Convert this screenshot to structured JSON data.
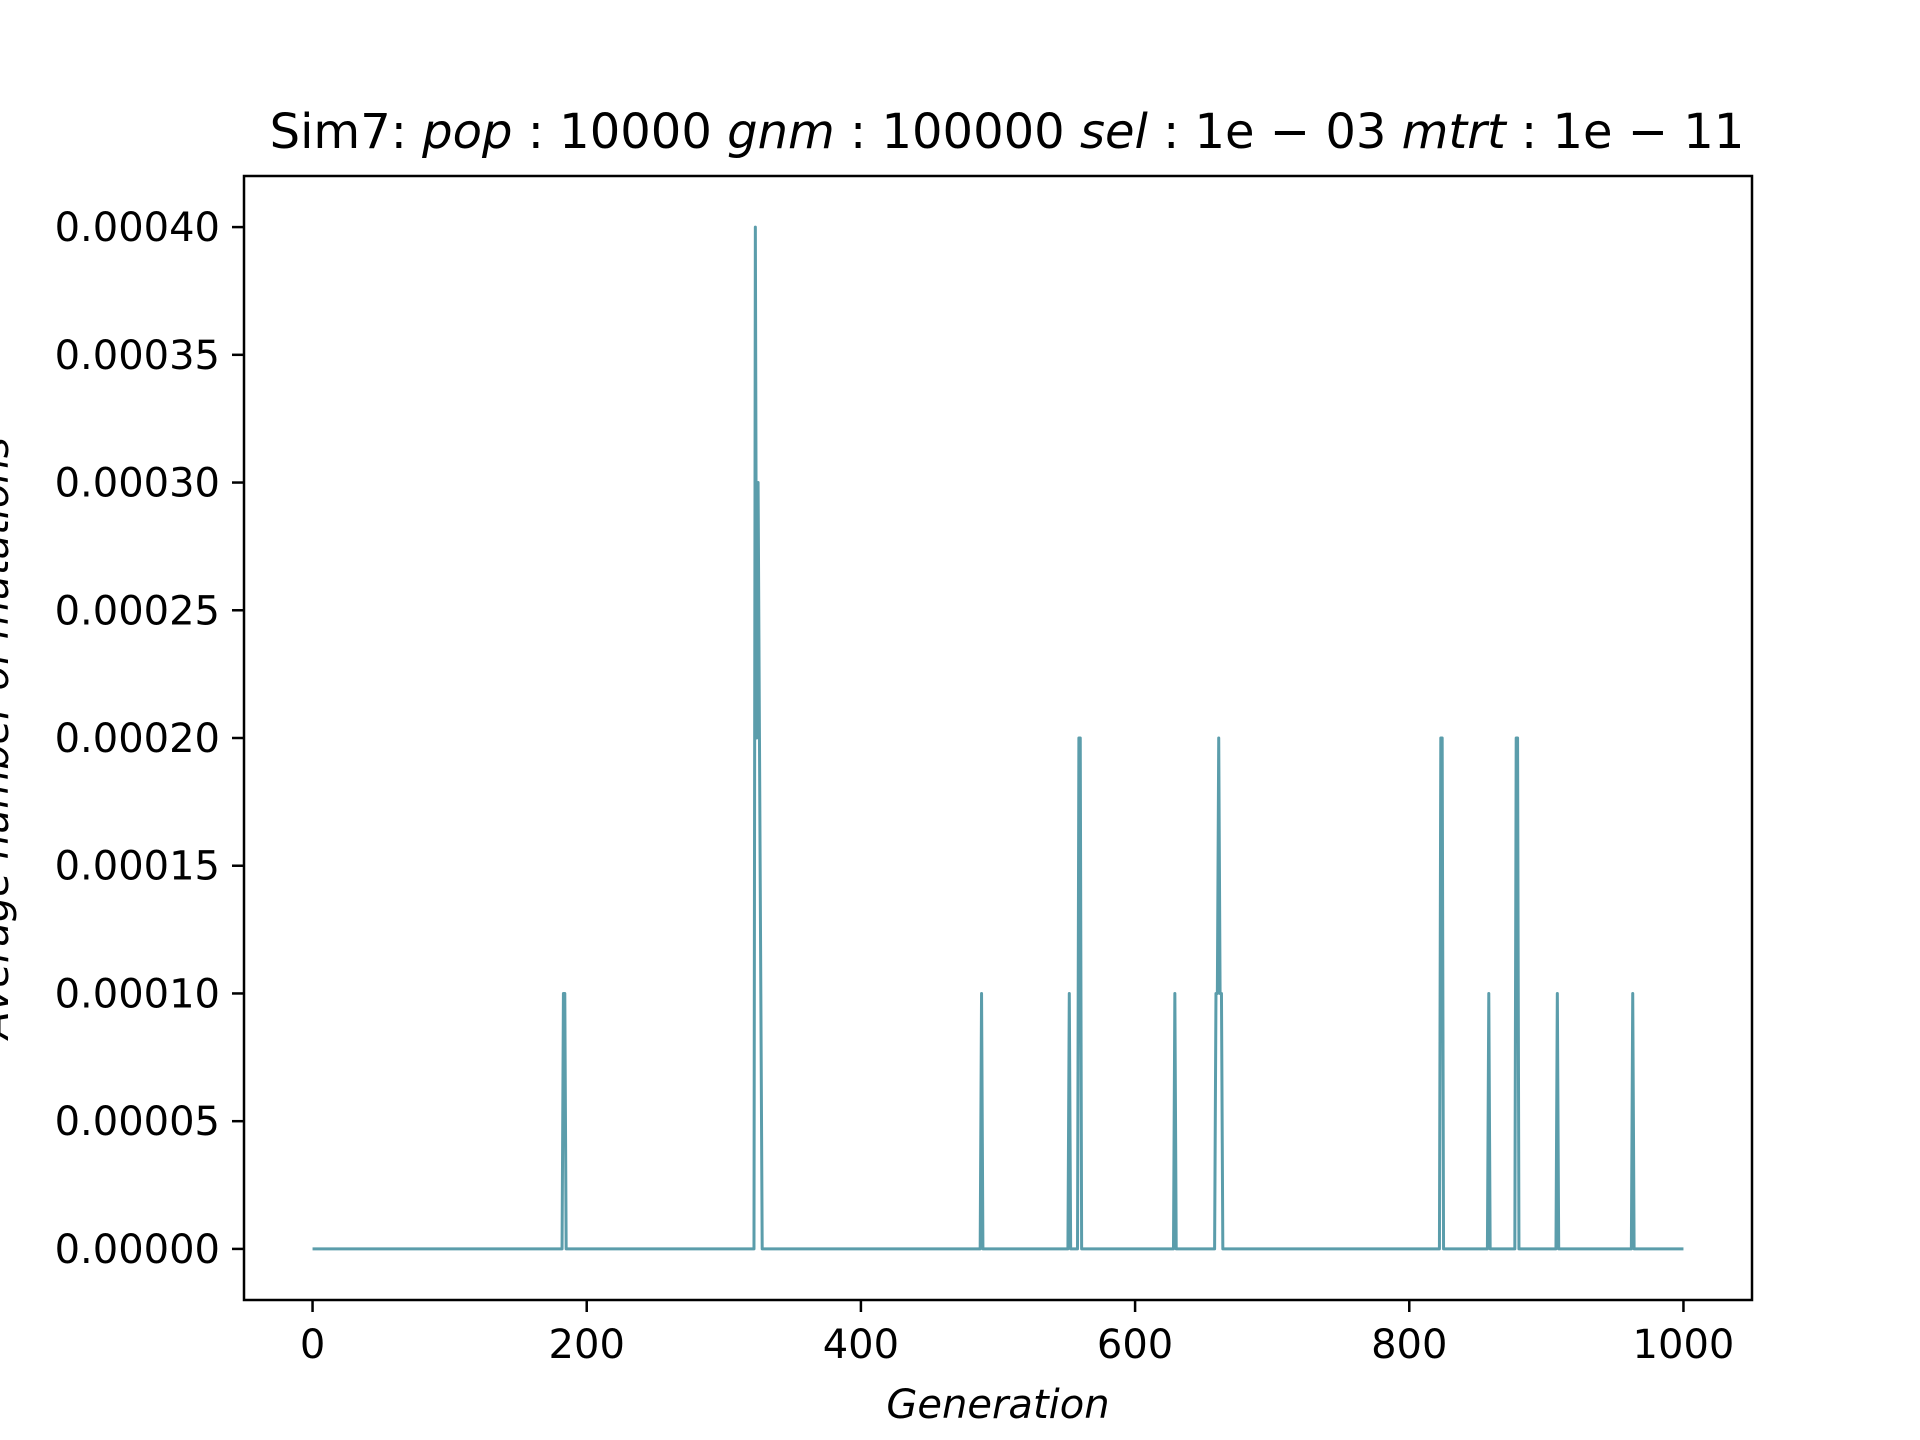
{
  "chart_data": {
    "type": "line",
    "title": {
      "prefix": "Sim7: ",
      "parts": [
        {
          "key": "pop",
          "value": "10000"
        },
        {
          "key": "gnm",
          "value": "100000"
        },
        {
          "key": "sel",
          "value": "1e − 03"
        },
        {
          "key": "mtrt",
          "value": "1e − 11"
        }
      ]
    },
    "xlabel": "Generation",
    "ylabel": "Average number of mutations",
    "xlim": [
      -50,
      1050
    ],
    "ylim": [
      -2e-05,
      0.00042
    ],
    "xticks": [
      0,
      200,
      400,
      600,
      800,
      1000
    ],
    "xtick_labels": [
      "0",
      "200",
      "400",
      "600",
      "800",
      "1000"
    ],
    "yticks": [
      0,
      5e-05,
      0.0001,
      0.00015,
      0.0002,
      0.00025,
      0.0003,
      0.00035,
      0.0004
    ],
    "ytick_labels": [
      "0.00000",
      "0.00005",
      "0.00010",
      "0.00015",
      "0.00020",
      "0.00025",
      "0.00030",
      "0.00035",
      "0.00040"
    ],
    "grid": false,
    "color": "#5b9dab",
    "series": [
      {
        "x": [
          0,
          182,
          183,
          184,
          185,
          322,
          323,
          324,
          325,
          326,
          327,
          328,
          487,
          488,
          489,
          551,
          552,
          553,
          558,
          559,
          560,
          561,
          628,
          629,
          630,
          658,
          659,
          660,
          661,
          662,
          663,
          664,
          822,
          823,
          824,
          825,
          857,
          858,
          859,
          877,
          878,
          879,
          880,
          907,
          908,
          909,
          962,
          963,
          964,
          1000
        ],
        "y": [
          0,
          0,
          0.0001,
          0.0001,
          0,
          0,
          0.0004,
          0.0002,
          0.0003,
          0.0002,
          0.0001,
          0,
          0,
          0.0001,
          0,
          0,
          0.0001,
          0,
          0,
          0.0002,
          0.0002,
          0,
          0,
          0.0001,
          0,
          0,
          0.0001,
          0.0001,
          0.0002,
          0.0001,
          0.0001,
          0,
          0,
          0.0002,
          0.0002,
          0,
          0,
          0.0001,
          0,
          0,
          0.0002,
          0.0002,
          0,
          0,
          0.0001,
          0,
          0,
          0.0001,
          0,
          0
        ]
      }
    ]
  }
}
